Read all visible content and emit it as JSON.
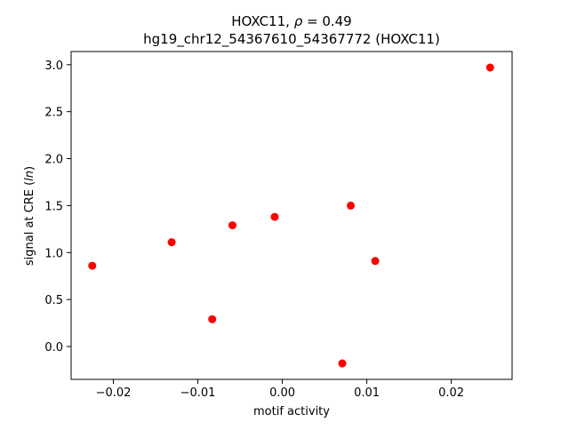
{
  "chart_data": {
    "type": "scatter",
    "title": "HOXC11, ρ = 0.49",
    "subtitle": "hg19_chr12_54367610_54367772 (HOXC11)",
    "xlabel": "motif activity",
    "ylabel": "signal at CRE (ln)",
    "xlim": [
      -0.025,
      0.0272
    ],
    "ylim": [
      -0.35,
      3.14
    ],
    "xticks": [
      {
        "value": -0.02,
        "label": "−0.02"
      },
      {
        "value": -0.01,
        "label": "−0.01"
      },
      {
        "value": 0.0,
        "label": "0.00"
      },
      {
        "value": 0.01,
        "label": "0.01"
      },
      {
        "value": 0.02,
        "label": "0.02"
      }
    ],
    "yticks": [
      {
        "value": 0.0,
        "label": "0.0"
      },
      {
        "value": 0.5,
        "label": "0.5"
      },
      {
        "value": 1.0,
        "label": "1.0"
      },
      {
        "value": 1.5,
        "label": "1.5"
      },
      {
        "value": 2.0,
        "label": "2.0"
      },
      {
        "value": 2.5,
        "label": "2.5"
      },
      {
        "value": 3.0,
        "label": "3.0"
      }
    ],
    "grid": false,
    "marker_color": "#ff0000",
    "series": [
      {
        "x": [
          -0.0225,
          -0.0131,
          -0.0083,
          -0.0059,
          -0.0009,
          0.0071,
          0.0081,
          0.011,
          0.0246
        ],
        "y": [
          0.86,
          1.11,
          0.29,
          1.29,
          1.38,
          -0.18,
          1.5,
          0.91,
          2.97
        ]
      }
    ]
  }
}
